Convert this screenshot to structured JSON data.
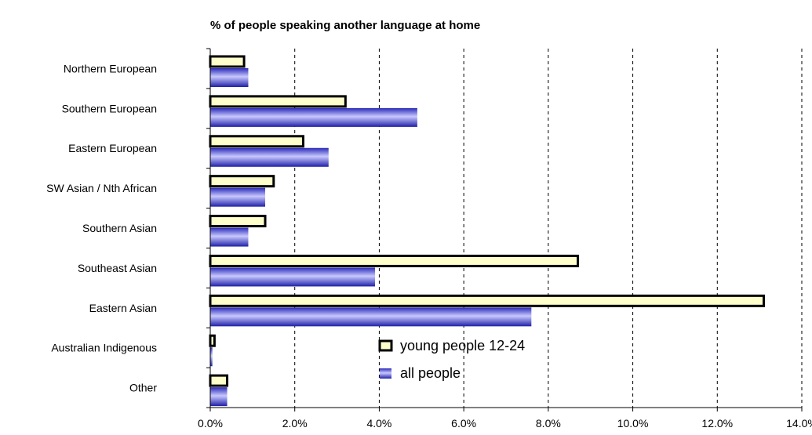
{
  "chart_data": {
    "type": "bar",
    "orientation": "horizontal",
    "title": "% of people speaking another language at home",
    "categories": [
      "Northern European",
      "Southern European",
      "Eastern European",
      "SW Asian / Nth African",
      "Southern Asian",
      "Southeast Asian",
      "Eastern Asian",
      "Australian Indigenous",
      "Other"
    ],
    "series": [
      {
        "name": "young people 12-24",
        "values": [
          0.8,
          3.2,
          2.2,
          1.5,
          1.3,
          8.7,
          13.1,
          0.1,
          0.4
        ],
        "color": "#ffffcc",
        "stroke": "#000000"
      },
      {
        "name": "all people",
        "values": [
          0.9,
          4.9,
          2.8,
          1.3,
          0.9,
          3.9,
          7.6,
          0.05,
          0.4
        ],
        "color": "#3c3cd8"
      }
    ],
    "x_ticks": [
      "0.0%",
      "2.0%",
      "4.0%",
      "6.0%",
      "8.0%",
      "10.0%",
      "12.0%",
      "14.0%"
    ],
    "xlim": [
      0,
      14
    ],
    "grid": "vertical dashed",
    "legend_placement": "inside-center-bottom"
  }
}
